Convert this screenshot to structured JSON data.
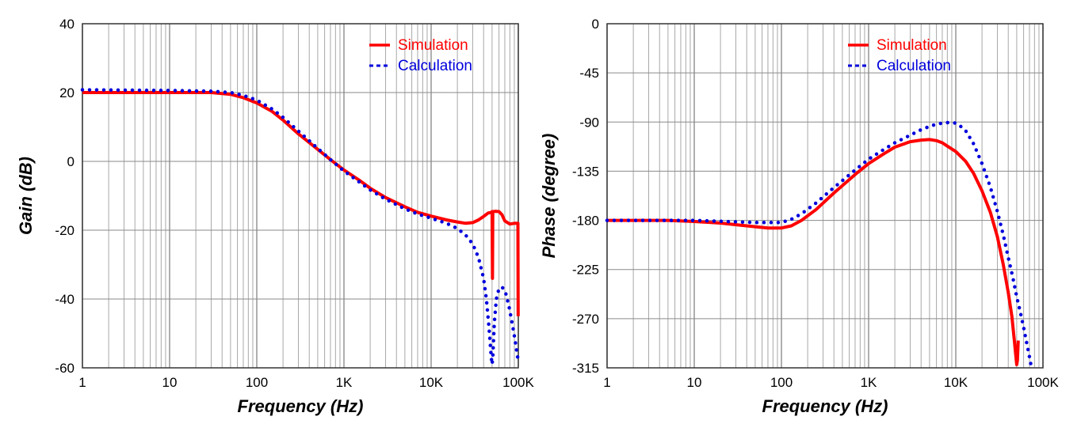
{
  "chart_data": [
    {
      "type": "line",
      "x_scale": "log",
      "xlabel": "Frequency (Hz)",
      "ylabel": "Gain (dB)",
      "xlim": [
        1,
        100000
      ],
      "ylim": [
        -60,
        40
      ],
      "x_ticks": [
        {
          "value": 1,
          "label": "1"
        },
        {
          "value": 10,
          "label": "10"
        },
        {
          "value": 100,
          "label": "100"
        },
        {
          "value": 1000,
          "label": "1K"
        },
        {
          "value": 10000,
          "label": "10K"
        },
        {
          "value": 100000,
          "label": "100K"
        }
      ],
      "y_ticks": [
        {
          "value": 40,
          "label": "40"
        },
        {
          "value": 20,
          "label": "20"
        },
        {
          "value": 0,
          "label": "0"
        },
        {
          "value": -20,
          "label": "-20"
        },
        {
          "value": -40,
          "label": "-40"
        },
        {
          "value": -60,
          "label": "-60"
        }
      ],
      "legend": "top-right",
      "series": [
        {
          "name": "Simulation",
          "style": "solid",
          "color": "#ff0000",
          "points": [
            [
              1,
              20
            ],
            [
              10,
              20
            ],
            [
              30,
              20
            ],
            [
              50,
              19.5
            ],
            [
              70,
              18.5
            ],
            [
              100,
              17
            ],
            [
              150,
              14.5
            ],
            [
              200,
              12
            ],
            [
              300,
              8
            ],
            [
              500,
              3.5
            ],
            [
              700,
              0.5
            ],
            [
              1000,
              -2.5
            ],
            [
              1500,
              -5.5
            ],
            [
              2000,
              -7.8
            ],
            [
              3000,
              -10.5
            ],
            [
              5000,
              -13.2
            ],
            [
              7000,
              -14.8
            ],
            [
              10000,
              -15.9
            ],
            [
              15000,
              -17
            ],
            [
              20000,
              -17.6
            ],
            [
              25000,
              -18
            ],
            [
              30000,
              -17.8
            ],
            [
              35000,
              -17
            ],
            [
              40000,
              -16
            ],
            [
              45000,
              -15
            ],
            [
              49000,
              -14.8
            ],
            [
              50000,
              -14.6
            ],
            [
              50500,
              -34
            ],
            [
              51000,
              -14.6
            ],
            [
              55000,
              -14.5
            ],
            [
              60000,
              -14.6
            ],
            [
              65000,
              -15.5
            ],
            [
              70000,
              -17.3
            ],
            [
              80000,
              -18.2
            ],
            [
              90000,
              -18
            ],
            [
              99000,
              -18
            ],
            [
              99500,
              -45
            ]
          ]
        },
        {
          "name": "Calculation",
          "style": "dotted",
          "color": "#0000dd",
          "points": [
            [
              1,
              20.8
            ],
            [
              10,
              20.6
            ],
            [
              30,
              20.4
            ],
            [
              50,
              20
            ],
            [
              70,
              19.2
            ],
            [
              100,
              17.8
            ],
            [
              150,
              15.2
            ],
            [
              200,
              12.8
            ],
            [
              300,
              8.8
            ],
            [
              500,
              3.8
            ],
            [
              700,
              0.5
            ],
            [
              1000,
              -2.8
            ],
            [
              1500,
              -6
            ],
            [
              2000,
              -8.3
            ],
            [
              3000,
              -11
            ],
            [
              5000,
              -13.8
            ],
            [
              7000,
              -15.3
            ],
            [
              10000,
              -16.5
            ],
            [
              15000,
              -18
            ],
            [
              20000,
              -19.5
            ],
            [
              25000,
              -21.5
            ],
            [
              30000,
              -24
            ],
            [
              35000,
              -28
            ],
            [
              40000,
              -34
            ],
            [
              43000,
              -40
            ],
            [
              46000,
              -48
            ],
            [
              49000,
              -57
            ],
            [
              50000,
              -59
            ],
            [
              51000,
              -57
            ],
            [
              53000,
              -47
            ],
            [
              56000,
              -40
            ],
            [
              60000,
              -37
            ],
            [
              64000,
              -36.5
            ],
            [
              68000,
              -37
            ],
            [
              72000,
              -38.5
            ],
            [
              78000,
              -42
            ],
            [
              85000,
              -47
            ],
            [
              92000,
              -52
            ],
            [
              97000,
              -56
            ],
            [
              100000,
              -58
            ]
          ]
        }
      ]
    },
    {
      "type": "line",
      "x_scale": "log",
      "xlabel": "Frequency (Hz)",
      "ylabel": "Phase (degree)",
      "xlim": [
        1,
        100000
      ],
      "ylim": [
        -315,
        0
      ],
      "x_ticks": [
        {
          "value": 1,
          "label": "1"
        },
        {
          "value": 10,
          "label": "10"
        },
        {
          "value": 100,
          "label": "100"
        },
        {
          "value": 1000,
          "label": "1K"
        },
        {
          "value": 10000,
          "label": "10K"
        },
        {
          "value": 100000,
          "label": "100K"
        }
      ],
      "y_ticks": [
        {
          "value": 0,
          "label": "0"
        },
        {
          "value": -45,
          "label": "-45"
        },
        {
          "value": -90,
          "label": "-90"
        },
        {
          "value": -135,
          "label": "-135"
        },
        {
          "value": -180,
          "label": "-180"
        },
        {
          "value": -225,
          "label": "-225"
        },
        {
          "value": -270,
          "label": "-270"
        },
        {
          "value": -315,
          "label": "-315"
        }
      ],
      "legend": "top-right",
      "series": [
        {
          "name": "Simulation",
          "style": "solid",
          "color": "#ff0000",
          "points": [
            [
              1,
              -180
            ],
            [
              5,
              -180
            ],
            [
              10,
              -181
            ],
            [
              20,
              -182.5
            ],
            [
              40,
              -185
            ],
            [
              70,
              -187
            ],
            [
              100,
              -187
            ],
            [
              130,
              -185
            ],
            [
              170,
              -180
            ],
            [
              250,
              -170
            ],
            [
              400,
              -155
            ],
            [
              700,
              -138
            ],
            [
              1000,
              -128
            ],
            [
              1500,
              -119
            ],
            [
              2000,
              -113
            ],
            [
              3000,
              -108
            ],
            [
              4000,
              -106.5
            ],
            [
              5000,
              -106
            ],
            [
              6000,
              -107
            ],
            [
              7000,
              -109
            ],
            [
              8000,
              -112
            ],
            [
              10000,
              -117
            ],
            [
              13000,
              -126
            ],
            [
              16000,
              -137
            ],
            [
              20000,
              -153
            ],
            [
              25000,
              -173
            ],
            [
              30000,
              -195
            ],
            [
              35000,
              -220
            ],
            [
              40000,
              -246
            ],
            [
              44000,
              -268
            ],
            [
              47000,
              -290
            ],
            [
              49000,
              -305
            ],
            [
              50000,
              -312
            ],
            [
              51000,
              -308
            ],
            [
              52000,
              -290
            ]
          ]
        },
        {
          "name": "Calculation",
          "style": "dotted",
          "color": "#0000dd",
          "points": [
            [
              1,
              -180
            ],
            [
              10,
              -180
            ],
            [
              50,
              -182
            ],
            [
              100,
              -182
            ],
            [
              130,
              -179
            ],
            [
              170,
              -174
            ],
            [
              250,
              -164
            ],
            [
              400,
              -150
            ],
            [
              700,
              -134
            ],
            [
              1000,
              -124
            ],
            [
              1500,
              -115
            ],
            [
              2000,
              -109
            ],
            [
              3000,
              -102
            ],
            [
              4000,
              -97
            ],
            [
              5000,
              -94
            ],
            [
              6000,
              -92
            ],
            [
              7000,
              -91
            ],
            [
              8000,
              -90.5
            ],
            [
              9000,
              -90.5
            ],
            [
              10000,
              -91
            ],
            [
              11000,
              -93
            ],
            [
              13000,
              -98
            ],
            [
              16000,
              -110
            ],
            [
              20000,
              -128
            ],
            [
              25000,
              -150
            ],
            [
              30000,
              -172
            ],
            [
              35000,
              -193
            ],
            [
              40000,
              -214
            ],
            [
              45000,
              -232
            ],
            [
              50000,
              -250
            ],
            [
              55000,
              -264
            ],
            [
              60000,
              -278
            ],
            [
              65000,
              -292
            ],
            [
              70000,
              -305
            ],
            [
              73000,
              -313
            ]
          ]
        }
      ]
    }
  ]
}
